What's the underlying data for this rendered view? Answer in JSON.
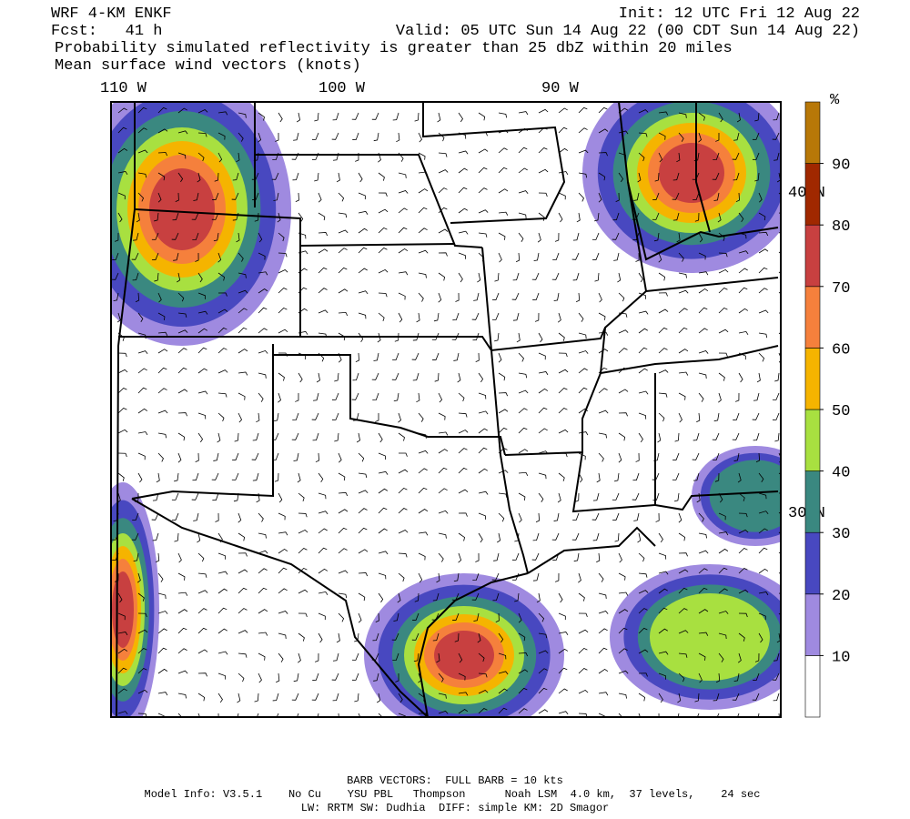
{
  "header": {
    "model": "WRF 4-KM ENKF",
    "init": "Init: 12 UTC Fri 12 Aug 22",
    "forecast": "Fcst:   41 h",
    "valid": "Valid: 05 UTC Sun 14 Aug 22 (00 CDT Sun 14 Aug 22)",
    "title": "Probability simulated reflectivity is greater than 25 dbZ within 20 miles",
    "subtitle": "Mean surface wind vectors (knots)"
  },
  "map": {
    "longitude_labels": [
      "110 W",
      "100 W",
      "90 W"
    ],
    "latitude_labels": [
      "40 N",
      "30 N"
    ]
  },
  "colorbar": {
    "unit": "%",
    "ticks": [
      10,
      20,
      30,
      40,
      50,
      60,
      70,
      80,
      90
    ],
    "colors": [
      "#ffffff",
      "#9f8ae0",
      "#4848c0",
      "#3a8880",
      "#a8e040",
      "#f5b400",
      "#f5803c",
      "#c84040",
      "#a02800",
      "#b87808"
    ]
  },
  "footer": {
    "barbs": "BARB VECTORS:  FULL BARB = 10 kts",
    "model_info": "Model Info: V3.5.1    No Cu    YSU PBL   Thompson      Noah LSM  4.0 km,  37 levels,    24 sec",
    "physics": "LW: RRTM SW: Dudhia  DIFF: simple KM: 2D Smagor"
  }
}
